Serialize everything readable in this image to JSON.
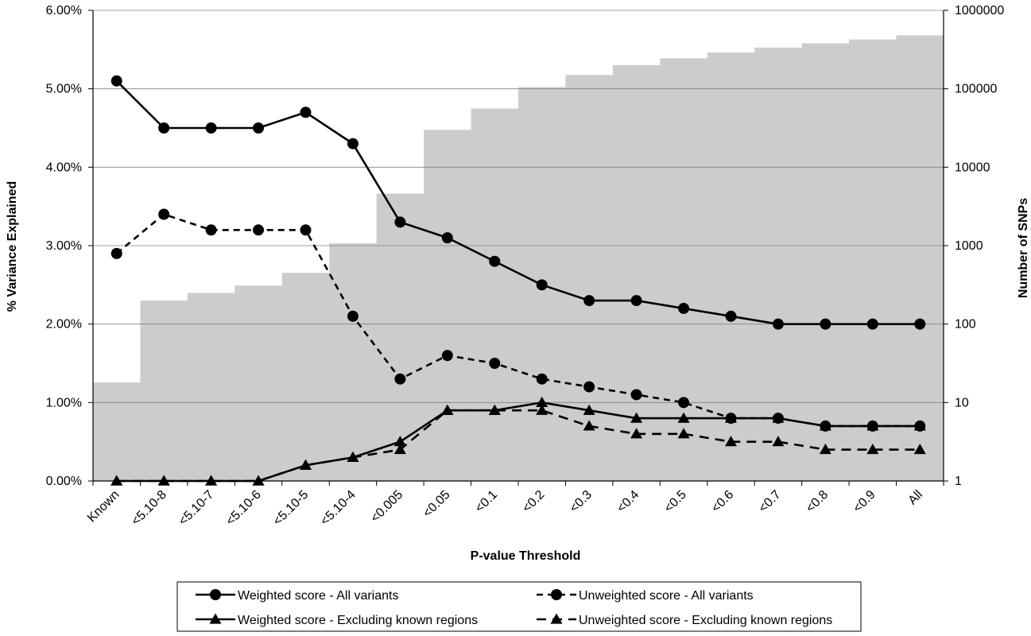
{
  "chart_data": {
    "type": "line",
    "xlabel": "P-value Threshold",
    "ylabel": "% Variance Explained",
    "y2label": "Number of SNPs",
    "categories": [
      "Known",
      "<5.10-8",
      "<5.10-7",
      "<5.10-6",
      "<5.10-5",
      "<5.10-4",
      "<0.005",
      "<0.05",
      "<0.1",
      "<0.2",
      "<0.3",
      "<0.4",
      "<0.5",
      "<0.6",
      "<0.7",
      "<0.8",
      "<0.9",
      "All"
    ],
    "ylim": [
      0,
      6
    ],
    "y_ticks": [
      "0.00%",
      "1.00%",
      "2.00%",
      "3.00%",
      "4.00%",
      "5.00%",
      "6.00%"
    ],
    "y2lim": [
      1,
      1000000
    ],
    "y2_scale": "log",
    "y2_ticks": [
      "1",
      "10",
      "100",
      "1000",
      "10000",
      "100000",
      "1000000"
    ],
    "grid": "horizontal",
    "legend_position": "bottom",
    "bar_color": "#cccccc",
    "snp_counts": [
      18,
      200,
      250,
      310,
      450,
      1070,
      4600,
      30000,
      56000,
      105000,
      150000,
      200000,
      245000,
      290000,
      335000,
      380000,
      425000,
      480000
    ],
    "series": [
      {
        "name": "Weighted score - All variants",
        "marker": "circle",
        "dash": "solid",
        "values": [
          5.1,
          4.5,
          4.5,
          4.5,
          4.7,
          4.3,
          3.3,
          3.1,
          2.8,
          2.5,
          2.3,
          2.3,
          2.2,
          2.1,
          2.0,
          2.0,
          2.0,
          2.0
        ]
      },
      {
        "name": "Unweighted score - All variants",
        "marker": "circle",
        "dash": "dashed",
        "values": [
          2.9,
          3.4,
          3.2,
          3.2,
          3.2,
          2.1,
          1.3,
          1.6,
          1.5,
          1.3,
          1.2,
          1.1,
          1.0,
          0.8,
          0.8,
          0.7,
          0.7,
          0.7
        ]
      },
      {
        "name": "Weighted score - Excluding known regions",
        "marker": "triangle",
        "dash": "solid",
        "values": [
          0.0,
          0.0,
          0.0,
          0.0,
          0.2,
          0.3,
          0.5,
          0.9,
          0.9,
          1.0,
          0.9,
          0.8,
          0.8,
          0.8,
          0.8,
          0.7,
          0.7,
          0.7
        ]
      },
      {
        "name": "Unweighted score - Excluding known regions",
        "marker": "triangle",
        "dash": "longdash",
        "values": [
          0.0,
          0.0,
          0.0,
          0.0,
          0.2,
          0.3,
          0.4,
          0.9,
          0.9,
          0.9,
          0.7,
          0.6,
          0.6,
          0.5,
          0.5,
          0.4,
          0.4,
          0.4
        ]
      }
    ]
  }
}
